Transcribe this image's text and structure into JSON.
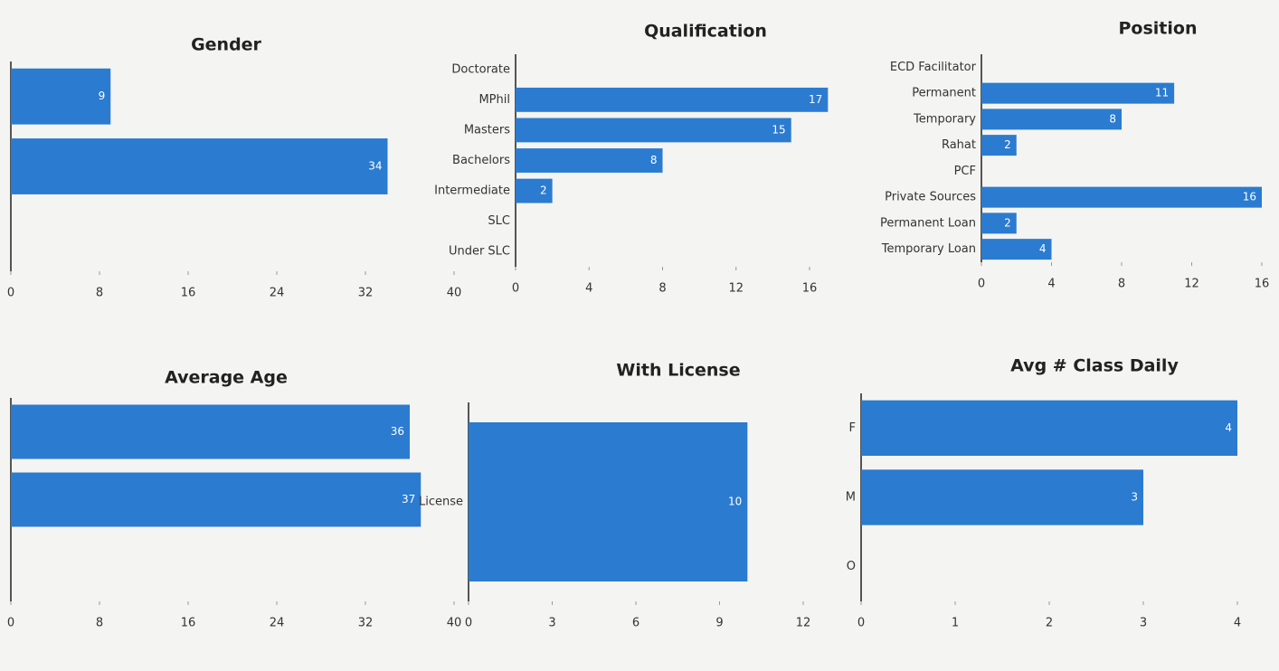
{
  "chart_data": [
    {
      "type": "bar",
      "title": "Gender",
      "categories": [
        null,
        null,
        null
      ],
      "values": [
        9,
        34,
        0
      ],
      "color": "#2b7bd0",
      "xlim": [
        0,
        40
      ],
      "xticks": [
        0,
        8,
        16,
        24,
        32,
        40
      ]
    },
    {
      "type": "bar",
      "title": "Qualification",
      "categories": [
        "Doctorate",
        "MPhil",
        "Masters",
        "Bachelors",
        "Intermediate",
        "SLC",
        "Under SLC"
      ],
      "values": [
        0,
        17,
        15,
        8,
        2,
        0,
        0
      ],
      "color": "#2b7bd0",
      "xlim": [
        0,
        16
      ],
      "xticks": [
        0,
        4,
        8,
        12,
        16
      ]
    },
    {
      "type": "bar",
      "title": "Position",
      "categories": [
        "ECD Facilitator",
        "Permanent",
        "Temporary",
        "Rahat",
        "PCF",
        "Private Sources",
        "Permanent Loan",
        "Temporary Loan"
      ],
      "values": [
        0,
        11,
        8,
        2,
        0,
        16,
        2,
        4
      ],
      "color": "#2b7bd0",
      "xlim": [
        0,
        16
      ],
      "xticks": [
        0,
        4,
        8,
        12,
        16
      ]
    },
    {
      "type": "bar",
      "title": "Average Age",
      "categories": [
        null,
        null,
        null
      ],
      "values": [
        36,
        37,
        0
      ],
      "color": "#2b7bd0",
      "xlim": [
        0,
        40
      ],
      "xticks": [
        0,
        8,
        16,
        24,
        32,
        40
      ]
    },
    {
      "type": "bar",
      "title": "With License",
      "categories": [
        "License"
      ],
      "values": [
        10
      ],
      "color": "#2b7bd0",
      "xlim": [
        0,
        12
      ],
      "xticks": [
        0,
        3,
        6,
        9,
        12
      ]
    },
    {
      "type": "bar",
      "title": "Avg # Class Daily",
      "categories": [
        "F",
        "M",
        "O"
      ],
      "values": [
        4,
        3,
        0
      ],
      "color": "#2b7bd0",
      "xlim": [
        0,
        4
      ],
      "xticks": [
        0,
        1,
        2,
        3,
        4
      ]
    }
  ]
}
